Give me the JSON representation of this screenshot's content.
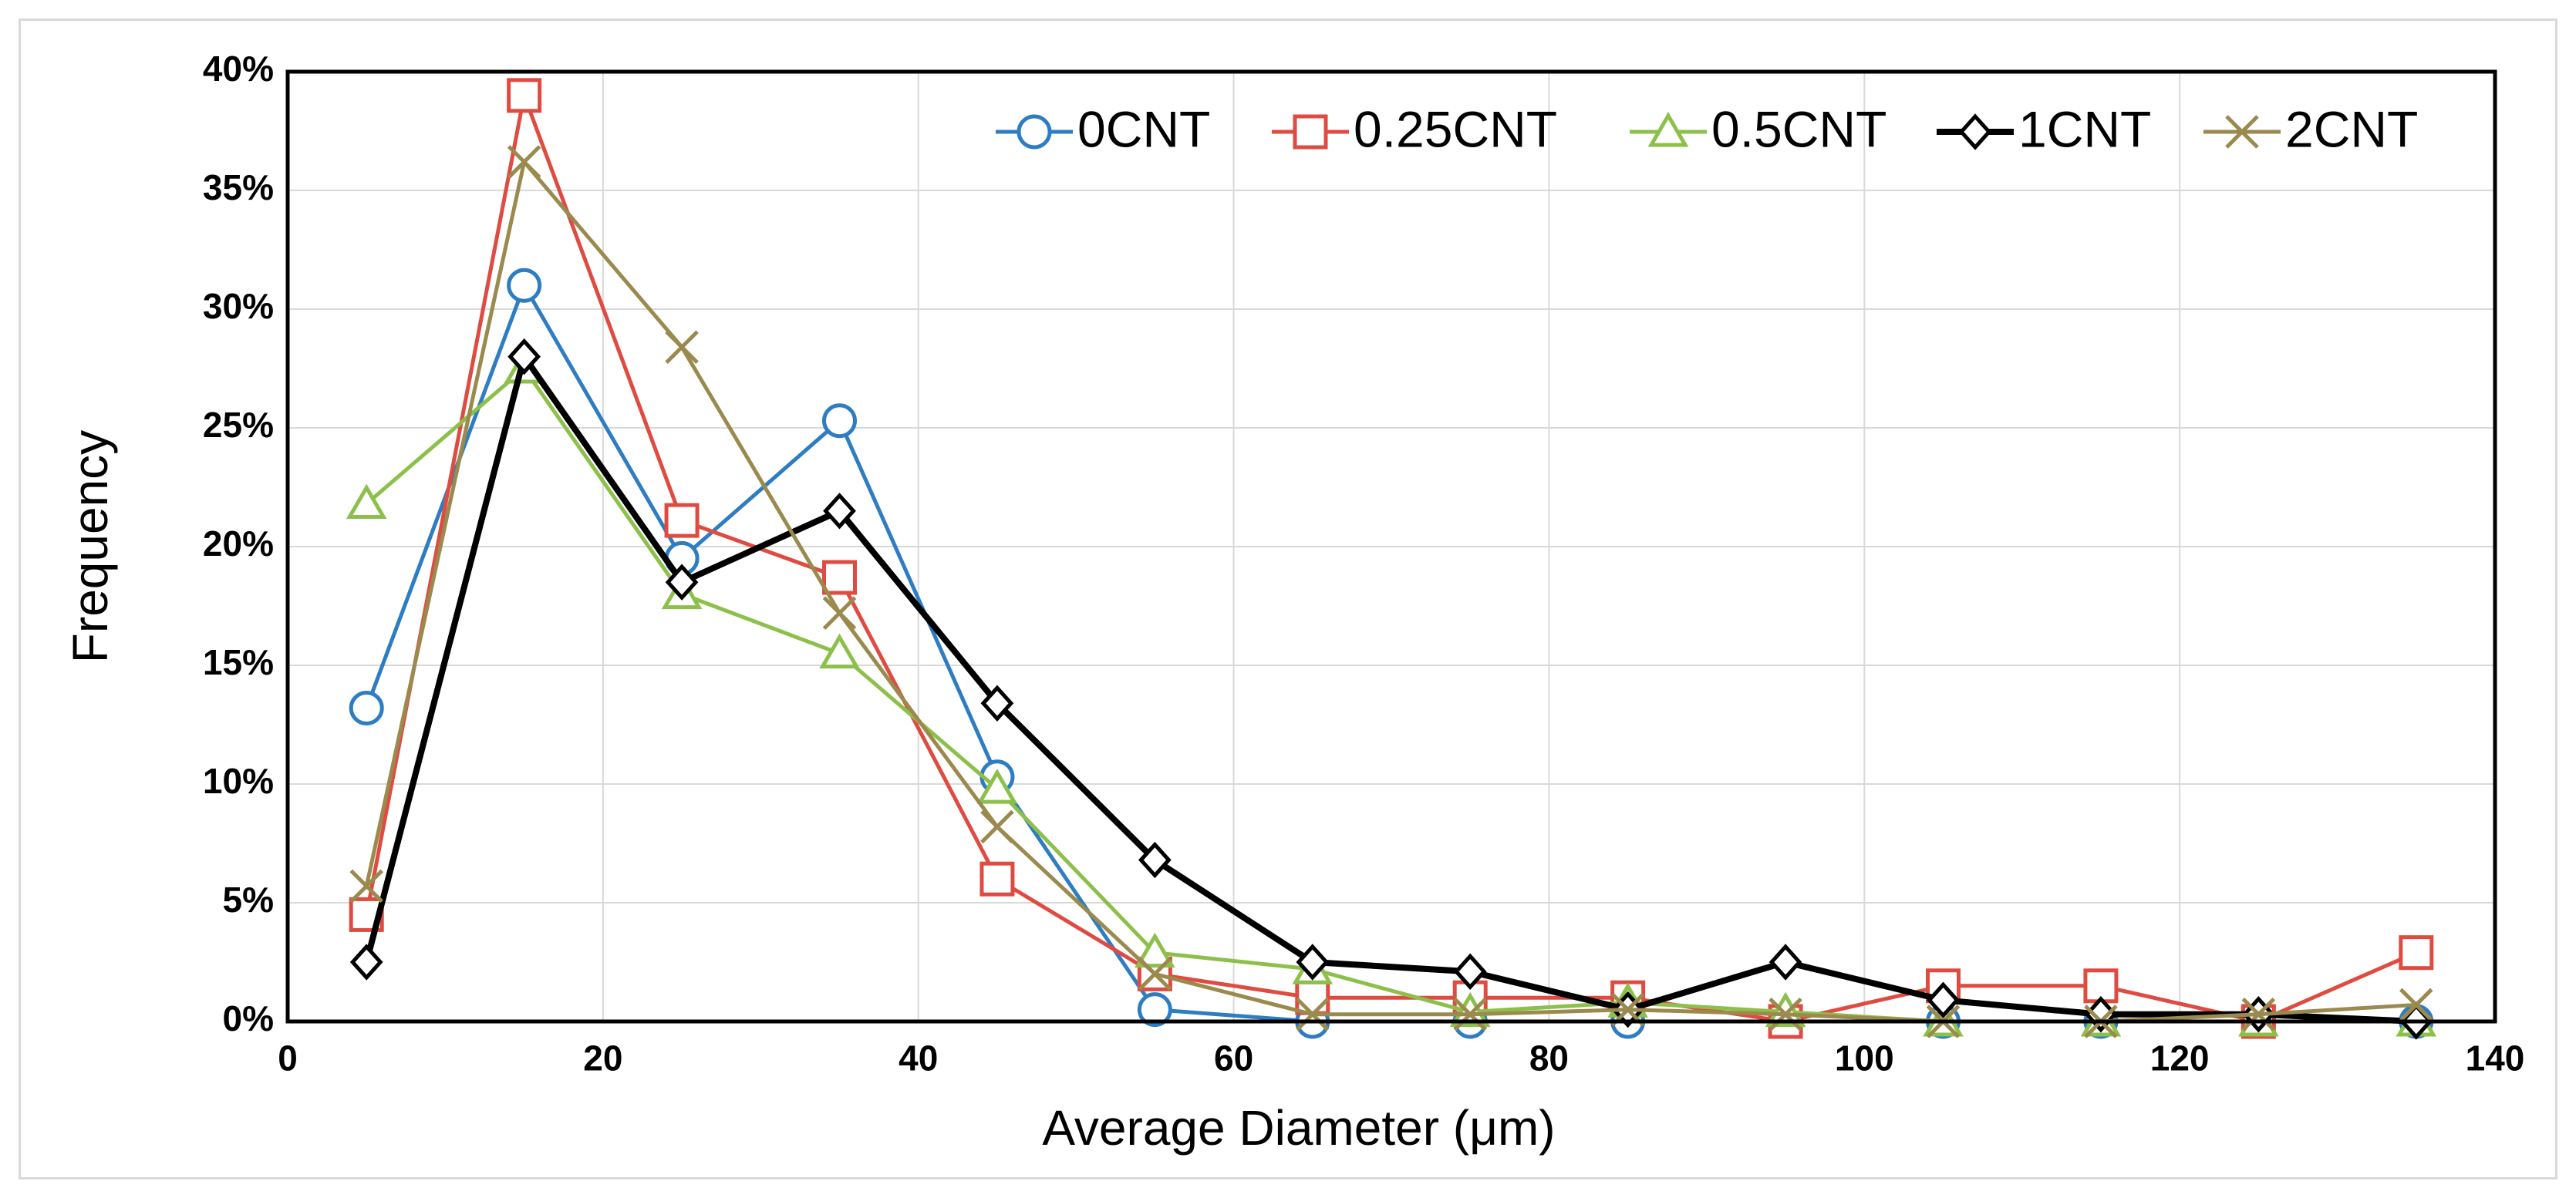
{
  "chart_data": {
    "type": "line",
    "title": "",
    "xlabel": "Average Diameter (μm)",
    "ylabel": "Frequency",
    "xlim": [
      0,
      140
    ],
    "ylim": [
      0,
      40
    ],
    "x_ticks": [
      "0",
      "20",
      "40",
      "60",
      "80",
      "100",
      "120",
      "140"
    ],
    "y_ticks": [
      "0%",
      "5%",
      "10%",
      "15%",
      "20%",
      "25%",
      "30%",
      "35%",
      "40%"
    ],
    "grid": true,
    "legend_position": "top-right",
    "x": [
      5,
      15,
      25,
      35,
      45,
      55,
      65,
      75,
      85,
      95,
      105,
      115,
      125,
      135
    ],
    "series": [
      {
        "name": "0CNT",
        "color": "#2e7dc3",
        "marker": "circle",
        "values": [
          13.2,
          31.0,
          19.5,
          25.3,
          10.3,
          0.5,
          0.0,
          0.0,
          0.0,
          0.0,
          0.0,
          0.0,
          0.0,
          0.0
        ]
      },
      {
        "name": "0.25CNT",
        "color": "#e04b41",
        "marker": "square",
        "values": [
          4.5,
          39.0,
          21.1,
          18.7,
          6.0,
          2.0,
          1.0,
          1.0,
          1.0,
          0.0,
          1.5,
          1.5,
          0.0,
          2.9
        ]
      },
      {
        "name": "0.5CNT",
        "color": "#8dc04b",
        "marker": "triangle",
        "values": [
          21.8,
          27.5,
          18.0,
          15.5,
          9.8,
          2.9,
          2.2,
          0.4,
          0.8,
          0.4,
          0.0,
          0.0,
          0.0,
          0.0
        ]
      },
      {
        "name": "1CNT",
        "color": "#000000",
        "marker": "diamond",
        "values": [
          2.5,
          28.0,
          18.5,
          21.5,
          13.4,
          6.8,
          2.5,
          2.1,
          0.5,
          2.5,
          0.9,
          0.3,
          0.3,
          0.0
        ]
      },
      {
        "name": "2CNT",
        "color": "#9a8a4e",
        "marker": "x",
        "values": [
          5.7,
          36.2,
          28.4,
          17.2,
          8.2,
          2.0,
          0.3,
          0.3,
          0.5,
          0.3,
          0.0,
          0.0,
          0.3,
          0.7
        ]
      }
    ]
  }
}
